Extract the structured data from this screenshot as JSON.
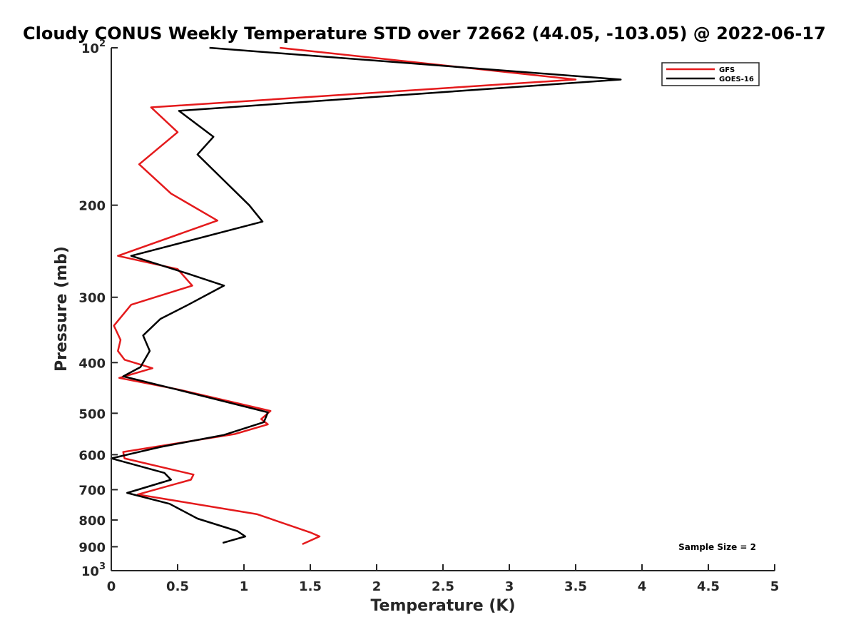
{
  "chart_data": {
    "type": "line",
    "title": "Cloudy CONUS Weekly Temperature STD over 72662 (44.05, -103.05) @ 2022-06-17",
    "xlabel": "Temperature (K)",
    "ylabel": "Pressure (mb)",
    "xlim": [
      0,
      5
    ],
    "ylim": [
      100,
      1000
    ],
    "y_scale": "log",
    "y_reversed": true,
    "x_ticks": [
      "0",
      "0.5",
      "1",
      "1.5",
      "2",
      "2.5",
      "3",
      "3.5",
      "4",
      "4.5",
      "5"
    ],
    "y_ticks": [
      {
        "value": 100,
        "label": "10",
        "sup": "2"
      },
      {
        "value": 200,
        "label": "200",
        "sup": ""
      },
      {
        "value": 300,
        "label": "300",
        "sup": ""
      },
      {
        "value": 400,
        "label": "400",
        "sup": ""
      },
      {
        "value": 500,
        "label": "500",
        "sup": ""
      },
      {
        "value": 600,
        "label": "600",
        "sup": ""
      },
      {
        "value": 700,
        "label": "700",
        "sup": ""
      },
      {
        "value": 800,
        "label": "800",
        "sup": ""
      },
      {
        "value": 900,
        "label": "900",
        "sup": ""
      },
      {
        "value": 1000,
        "label": "10",
        "sup": "3"
      }
    ],
    "grid": false,
    "legend_position": "top-right",
    "annotation": "Sample Size = 2",
    "series": [
      {
        "name": "GFS",
        "color": "#e41a1c",
        "points": [
          [
            1.27,
            100
          ],
          [
            3.5,
            115
          ],
          [
            0.3,
            130
          ],
          [
            0.5,
            145
          ],
          [
            0.21,
            167
          ],
          [
            0.45,
            190
          ],
          [
            0.8,
            214
          ],
          [
            0.05,
            250
          ],
          [
            0.5,
            265
          ],
          [
            0.61,
            285
          ],
          [
            0.15,
            310
          ],
          [
            0.02,
            340
          ],
          [
            0.07,
            362
          ],
          [
            0.05,
            380
          ],
          [
            0.1,
            395
          ],
          [
            0.31,
            410
          ],
          [
            0.06,
            428
          ],
          [
            0.5,
            450
          ],
          [
            1.2,
            495
          ],
          [
            1.13,
            513
          ],
          [
            1.18,
            525
          ],
          [
            0.93,
            548
          ],
          [
            0.09,
            593
          ],
          [
            0.1,
            610
          ],
          [
            0.62,
            655
          ],
          [
            0.6,
            670
          ],
          [
            0.2,
            715
          ],
          [
            1.1,
            780
          ],
          [
            1.5,
            845
          ],
          [
            1.57,
            860
          ],
          [
            1.44,
            890
          ]
        ]
      },
      {
        "name": "GOES-16",
        "color": "#000000",
        "points": [
          [
            0.74,
            100
          ],
          [
            3.84,
            115
          ],
          [
            0.51,
            132
          ],
          [
            0.77,
            148
          ],
          [
            0.65,
            160
          ],
          [
            1.04,
            200
          ],
          [
            1.14,
            215
          ],
          [
            0.15,
            250
          ],
          [
            0.57,
            270
          ],
          [
            0.85,
            285
          ],
          [
            0.58,
            310
          ],
          [
            0.37,
            330
          ],
          [
            0.24,
            355
          ],
          [
            0.29,
            380
          ],
          [
            0.22,
            408
          ],
          [
            0.09,
            425
          ],
          [
            0.49,
            450
          ],
          [
            1.18,
            498
          ],
          [
            1.15,
            520
          ],
          [
            0.85,
            550
          ],
          [
            0.37,
            580
          ],
          [
            0.0,
            610
          ],
          [
            0.4,
            650
          ],
          [
            0.45,
            670
          ],
          [
            0.12,
            710
          ],
          [
            0.44,
            745
          ],
          [
            0.65,
            795
          ],
          [
            0.95,
            840
          ],
          [
            1.01,
            860
          ],
          [
            0.84,
            885
          ]
        ]
      }
    ]
  }
}
